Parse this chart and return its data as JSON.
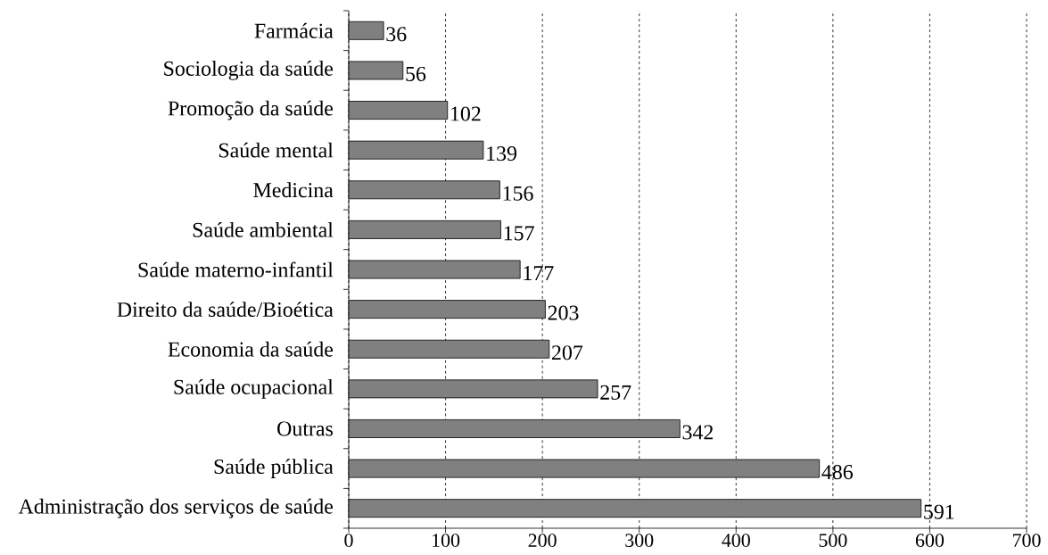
{
  "chart_data": {
    "type": "bar",
    "orientation": "horizontal",
    "categories": [
      "Farmácia",
      "Sociologia da saúde",
      "Promoção da saúde",
      "Saúde mental",
      "Medicina",
      "Saúde ambiental",
      "Saúde materno-infantil",
      "Direito da saúde/Bioética",
      "Economia da saúde",
      "Saúde ocupacional",
      "Outras",
      "Saúde pública",
      "Administração dos serviços de saúde"
    ],
    "values": [
      36,
      56,
      102,
      139,
      156,
      157,
      177,
      203,
      207,
      257,
      342,
      486,
      591
    ],
    "color": "#808080",
    "xlim": [
      0,
      700
    ],
    "xticks": [
      0,
      100,
      200,
      300,
      400,
      500,
      600,
      700
    ],
    "grid": "x",
    "data_labels": true
  }
}
